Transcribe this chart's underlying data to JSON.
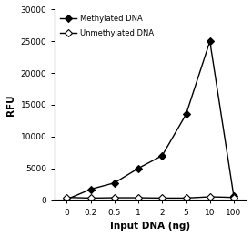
{
  "methylated_x_idx": [
    0,
    1,
    2,
    3,
    4,
    5,
    6,
    7
  ],
  "methylated_y": [
    100,
    1700,
    2700,
    5000,
    7000,
    13500,
    25000,
    600
  ],
  "unmethylated_x_idx": [
    0,
    1,
    2,
    3,
    4,
    5,
    6,
    7
  ],
  "unmethylated_y": [
    400,
    300,
    350,
    350,
    300,
    300,
    500,
    400
  ],
  "xtick_labels": [
    "0",
    "0.2",
    "0.5",
    "1",
    "2",
    "5",
    "10",
    "100"
  ],
  "ytick_positions": [
    0,
    5000,
    10000,
    15000,
    20000,
    25000,
    30000
  ],
  "ytick_labels": [
    "0",
    "5000",
    "10000",
    "15000",
    "20000",
    "25000",
    "30000"
  ],
  "ylabel": "RFU",
  "xlabel": "Input DNA (ng)",
  "legend_methylated": "Methylated DNA",
  "legend_unmethylated": "Unmethylated DNA",
  "line_color": "#000000",
  "ylim": [
    0,
    30000
  ]
}
